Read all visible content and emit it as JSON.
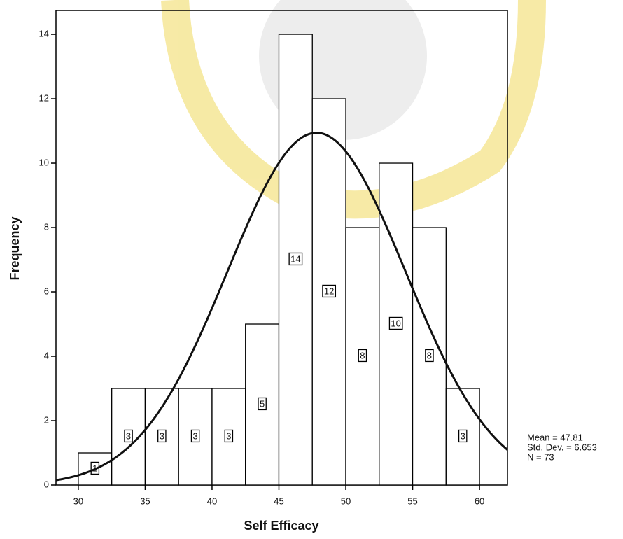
{
  "chart_data": {
    "type": "histogram",
    "x_label": "Self Efficacy",
    "y_label": "Frequency",
    "bins": [
      30,
      32.5,
      35,
      37.5,
      40,
      42.5,
      45,
      47.5,
      50,
      52.5,
      55,
      57.5,
      60
    ],
    "values": [
      1,
      3,
      3,
      3,
      3,
      5,
      14,
      12,
      8,
      10,
      8,
      3
    ],
    "color": "#ffffff",
    "xlim": [
      28.33,
      62.09
    ],
    "ylim": [
      0,
      14.74
    ],
    "xticks": [
      30,
      35,
      40,
      45,
      50,
      55,
      60
    ],
    "yticks": [
      0,
      2,
      4,
      6,
      8,
      10,
      12,
      14
    ],
    "stats": [
      {
        "value": 47.81,
        "label": "Mean = 47.81"
      },
      {
        "value": 6.653,
        "label": "Std. Dev. = 6.653"
      },
      {
        "value": 73,
        "label": "N = 73"
      }
    ]
  }
}
